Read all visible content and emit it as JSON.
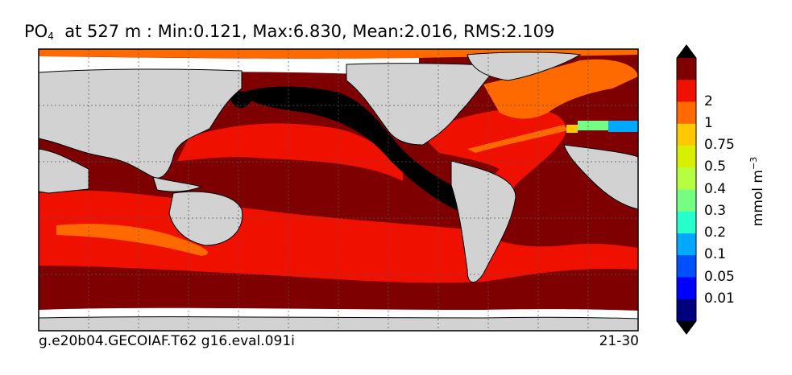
{
  "title": {
    "variable": "PO",
    "subscript": "4",
    "rest": "at 527 m : Min:0.121, Max:6.830, Mean:2.016, RMS:2.109"
  },
  "footer": {
    "case": "g.e20b04.GECOIAF.T62 g16.eval.091i",
    "years": "21-30"
  },
  "colorbar": {
    "unit_text": "mmol m",
    "unit_exp": "−3",
    "levels": [
      "0.01",
      "0.05",
      "0.1",
      "0.2",
      "0.3",
      "0.4",
      "0.5",
      "0.75",
      "1",
      "2"
    ],
    "colors": [
      "#00007f",
      "#0000ff",
      "#0050ff",
      "#00a8ff",
      "#27ffcf",
      "#75ff82",
      "#b6ff40",
      "#d8f000",
      "#ffc800",
      "#ff6a00",
      "#f01000",
      "#7f0000"
    ],
    "under_color": "#000000",
    "over_color": "#000000"
  },
  "map": {
    "colors": {
      "ocean_main": "#7f0000",
      "ocean_mid": "#f01000",
      "ocean_high": "#ff6a00",
      "ocean_min": "#000000",
      "land": "#d2d2d2",
      "missing": "#ffffff",
      "yellow": "#ffc800",
      "green": "#75ff82",
      "cyan": "#00a8ff"
    }
  }
}
